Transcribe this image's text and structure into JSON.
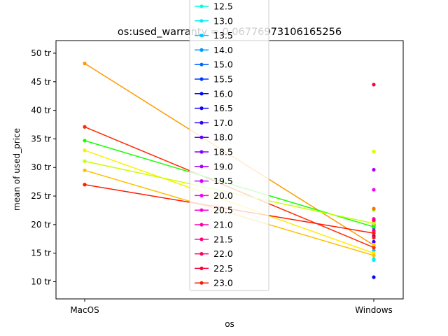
{
  "chart_data": {
    "type": "line",
    "title": "os:used_warranty = 0.06776973106165256",
    "xlabel": "os",
    "ylabel": "mean of used_price",
    "categories": [
      "MacOS",
      "Windows"
    ],
    "ylim": [
      7,
      52.2
    ],
    "yticks": [
      {
        "value": 10,
        "label": "10 tr"
      },
      {
        "value": 15,
        "label": "15 tr"
      },
      {
        "value": 20,
        "label": "20 tr"
      },
      {
        "value": 25,
        "label": "25 tr"
      },
      {
        "value": 30,
        "label": "30 tr"
      },
      {
        "value": 35,
        "label": "35 tr"
      },
      {
        "value": 40,
        "label": "40 tr"
      },
      {
        "value": 45,
        "label": "45 tr"
      },
      {
        "value": 50,
        "label": "50 tr"
      }
    ],
    "legend_position": "top-center",
    "grid": false,
    "series": [
      {
        "name": "12.5",
        "color": "#00ffe0",
        "values": [
          null,
          14.0
        ]
      },
      {
        "name": "13.0",
        "color": "#00f0ff",
        "values": [
          null,
          13.8
        ]
      },
      {
        "name": "13.5",
        "color": "#00c8ff",
        "values": [
          null,
          15.5
        ]
      },
      {
        "name": "14.0",
        "color": "#0098ff",
        "values": [
          null,
          16.0
        ]
      },
      {
        "name": "15.0",
        "color": "#0068ff",
        "values": [
          null,
          19.0
        ]
      },
      {
        "name": "15.5",
        "color": "#0038ff",
        "values": [
          null,
          20.0
        ]
      },
      {
        "name": "16.0",
        "color": "#0008ff",
        "values": [
          null,
          10.8
        ]
      },
      {
        "name": "16.5",
        "color": "#1400ff",
        "values": [
          null,
          19.5
        ]
      },
      {
        "name": "17.0",
        "color": "#3800ff",
        "values": [
          null,
          17.0
        ]
      },
      {
        "name": "18.0",
        "color": "#6000ff",
        "values": [
          null,
          18.0
        ]
      },
      {
        "name": "18.5",
        "color": "#8400ff",
        "values": [
          null,
          20.0
        ]
      },
      {
        "name": "19.0",
        "color": "#ac00ff",
        "values": [
          null,
          29.6
        ]
      },
      {
        "name": "19.5",
        "color": "#d000ff",
        "values": [
          null,
          18.5
        ]
      },
      {
        "name": "20.0",
        "color": "#f800ff",
        "values": [
          null,
          26.1
        ]
      },
      {
        "name": "20.5",
        "color": "#ff00d8",
        "values": [
          null,
          20.3
        ]
      },
      {
        "name": "21.0",
        "color": "#ff00b0",
        "values": [
          null,
          21.0
        ]
      },
      {
        "name": "21.5",
        "color": "#ff0088",
        "values": [
          null,
          18.9
        ]
      },
      {
        "name": "22.0",
        "color": "#ff0060",
        "values": [
          null,
          20.7
        ]
      },
      {
        "name": "22.5",
        "color": "#ff0038",
        "values": [
          null,
          44.5
        ]
      },
      {
        "name": "23.0",
        "color": "#ff1800",
        "values": [
          null,
          17.7
        ]
      },
      {
        "name": "",
        "color": "#ff9a00",
        "values": [
          48.2,
          16.4
        ]
      },
      {
        "name": "",
        "color": "#ff2a00",
        "values": [
          37.1,
          16.0
        ]
      },
      {
        "name": "",
        "color": "#18ff00",
        "values": [
          34.7,
          19.6
        ]
      },
      {
        "name": "",
        "color": "#ffee00",
        "values": [
          33.0,
          15.0
        ]
      },
      {
        "name": "",
        "color": "#c8ff00",
        "values": [
          31.1,
          20.2
        ]
      },
      {
        "name": "",
        "color": "#ffc000",
        "values": [
          29.5,
          14.6
        ]
      },
      {
        "name": "",
        "color": "#ff1a00",
        "values": [
          27.0,
          18.5
        ]
      },
      {
        "name": "",
        "color": "#80ff00",
        "values": [
          null,
          22.6
        ]
      },
      {
        "name": "",
        "color": "#ffd000",
        "values": [
          null,
          16.5
        ]
      },
      {
        "name": "",
        "color": "#ff7000",
        "values": [
          null,
          22.8
        ]
      },
      {
        "name": "",
        "color": "#d4ff00",
        "values": [
          null,
          32.8
        ]
      }
    ]
  }
}
